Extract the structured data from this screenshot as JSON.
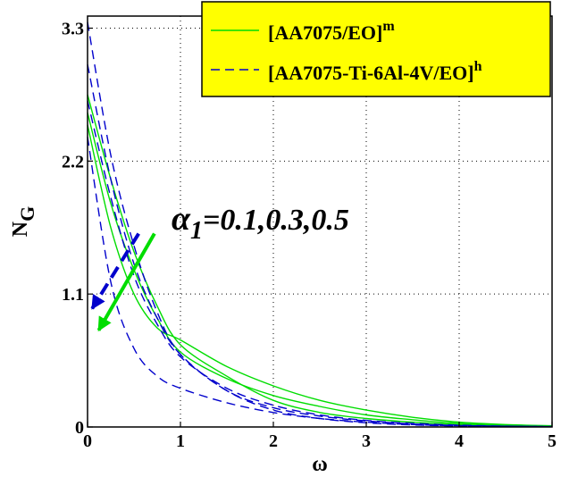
{
  "chart_data": {
    "type": "line",
    "xlabel": "ω",
    "ylabel": "N",
    "ylabel_sub": "G",
    "xlim": [
      0,
      5
    ],
    "ylim": [
      0,
      3.4
    ],
    "xticks": [
      "0",
      "1",
      "2",
      "3",
      "4",
      "5"
    ],
    "yticks": [
      "0",
      "1.1",
      "2.2",
      "3.3"
    ],
    "ytick_values": [
      0,
      1.1,
      2.2,
      3.3
    ],
    "grid": true,
    "legend_position": "top-right",
    "legend": [
      {
        "base": "[AA7075/EO]",
        "sup": "m",
        "style": "solid",
        "color": "#00dd00"
      },
      {
        "base": "[AA7075-Ti-6Al-4V/EO]",
        "sup": "h",
        "style": "dashed",
        "color": "#0000cc"
      }
    ],
    "annotation": {
      "symbol": "α",
      "sub": "1",
      "text": "=0.1,0.3,0.5"
    },
    "series": [
      {
        "group": 0,
        "style": "solid",
        "color": "#00dd00",
        "x": [
          0,
          0.25,
          0.5,
          0.75,
          1,
          1.5,
          2,
          2.5,
          3,
          3.5,
          4,
          4.5,
          5
        ],
        "y": [
          2.75,
          2.05,
          1.45,
          1.0,
          0.68,
          0.42,
          0.22,
          0.12,
          0.07,
          0.04,
          0.02,
          0.01,
          0.005
        ]
      },
      {
        "group": 0,
        "style": "solid",
        "color": "#00dd00",
        "x": [
          0,
          0.25,
          0.5,
          0.75,
          1,
          1.5,
          2,
          2.5,
          3,
          3.5,
          4,
          4.5,
          5
        ],
        "y": [
          2.6,
          1.85,
          1.3,
          0.9,
          0.62,
          0.4,
          0.26,
          0.17,
          0.1,
          0.06,
          0.03,
          0.015,
          0.007
        ]
      },
      {
        "group": 0,
        "style": "solid",
        "color": "#00dd00",
        "x": [
          0,
          0.25,
          0.5,
          0.75,
          1,
          1.5,
          2,
          2.5,
          3,
          3.5,
          4,
          4.5,
          5
        ],
        "y": [
          2.5,
          1.65,
          1.1,
          0.82,
          0.72,
          0.5,
          0.34,
          0.22,
          0.14,
          0.08,
          0.04,
          0.02,
          0.01
        ]
      },
      {
        "group": 1,
        "style": "dashed",
        "color": "#0000cc",
        "x": [
          0,
          0.25,
          0.5,
          0.75,
          1,
          1.5,
          2,
          2.5,
          3,
          3.5,
          4,
          4.5,
          5
        ],
        "y": [
          3.35,
          2.25,
          1.5,
          0.95,
          0.6,
          0.3,
          0.14,
          0.07,
          0.035,
          0.017,
          0.008,
          0.004,
          0.002
        ]
      },
      {
        "group": 1,
        "style": "dashed",
        "color": "#0000cc",
        "x": [
          0,
          0.25,
          0.5,
          0.75,
          1,
          1.5,
          2,
          2.5,
          3,
          3.5,
          4,
          4.5,
          5
        ],
        "y": [
          3.0,
          2.05,
          1.35,
          0.9,
          0.6,
          0.3,
          0.16,
          0.09,
          0.05,
          0.025,
          0.012,
          0.006,
          0.003
        ]
      },
      {
        "group": 1,
        "style": "dashed",
        "color": "#0000cc",
        "x": [
          0,
          0.25,
          0.5,
          0.75,
          1,
          1.5,
          2,
          2.5,
          3,
          3.5,
          4,
          4.5,
          5
        ],
        "y": [
          2.7,
          1.9,
          1.25,
          0.85,
          0.58,
          0.32,
          0.18,
          0.1,
          0.055,
          0.03,
          0.015,
          0.007,
          0.003
        ]
      },
      {
        "group": 1,
        "style": "dashed",
        "color": "#0000cc",
        "x": [
          0,
          0.25,
          0.5,
          0.75,
          1,
          1.5,
          2,
          2.5,
          3,
          3.5,
          4,
          4.5,
          5
        ],
        "y": [
          2.4,
          1.2,
          0.65,
          0.42,
          0.32,
          0.2,
          0.12,
          0.07,
          0.04,
          0.02,
          0.01,
          0.005,
          0.002
        ]
      }
    ],
    "arrows": [
      {
        "color": "#0000cc",
        "style": "dashed",
        "from": [
          0.55,
          1.6
        ],
        "to": [
          0.05,
          0.98
        ]
      },
      {
        "color": "#00dd00",
        "style": "solid",
        "from": [
          0.72,
          1.6
        ],
        "to": [
          0.12,
          0.8
        ]
      }
    ]
  }
}
